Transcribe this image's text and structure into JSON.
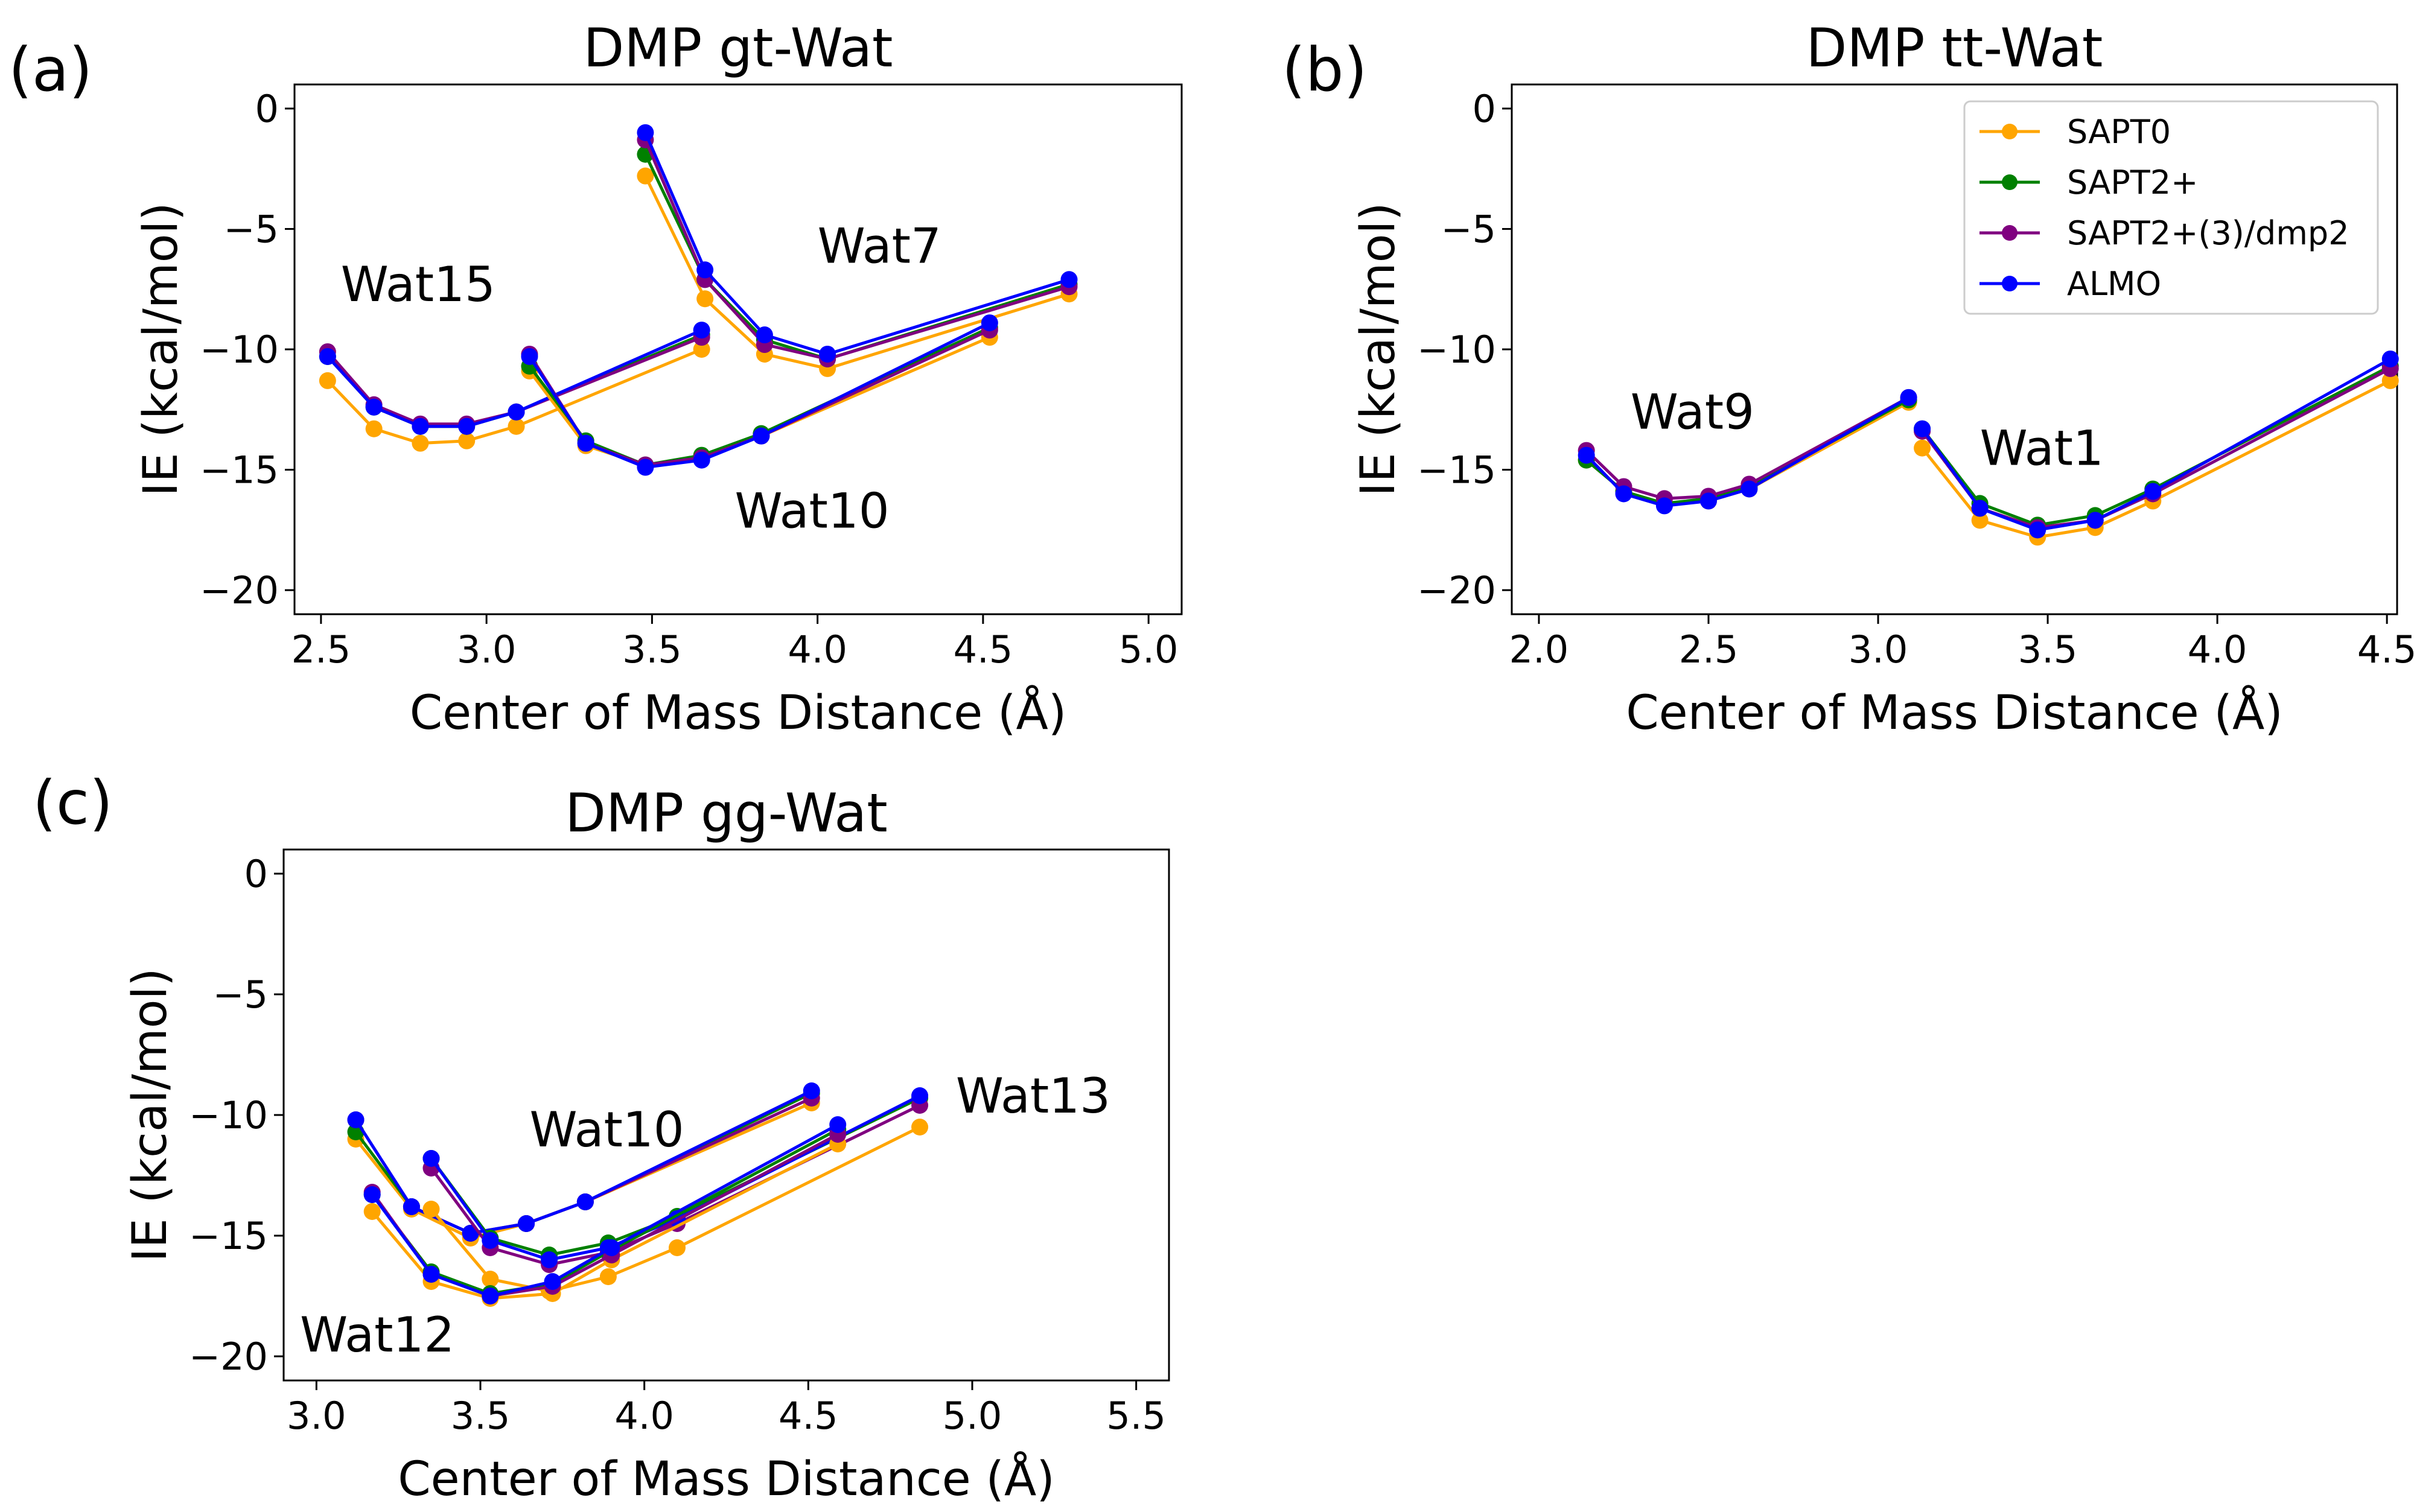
{
  "colors": {
    "SAPT0": "#FFA500",
    "SAPT2+": "#008000",
    "SAPT2+(3)/dmp2": "#800080",
    "ALMO": "#0000FF"
  },
  "legend": {
    "entries": [
      "SAPT0",
      "SAPT2+",
      "SAPT2+(3)/dmp2",
      "ALMO"
    ],
    "placement": "top-right of panel (b)"
  },
  "chart_data": [
    {
      "type": "line",
      "panel": "(a)",
      "title": "DMP gt-Wat",
      "xlabel": "Center of Mass Distance  (Å)",
      "ylabel": "IE (kcal/mol)",
      "xlim": [
        2.42,
        5.1
      ],
      "ylim": [
        -21.0,
        1.0
      ],
      "xticks": [
        "2.5",
        "3.0",
        "3.5",
        "4.0",
        "4.5",
        "5.0"
      ],
      "xtick_values": [
        2.5,
        3.0,
        3.5,
        4.0,
        4.5,
        5.0
      ],
      "yticks": [
        "0",
        "−5",
        "−10",
        "−15",
        "−20"
      ],
      "ytick_values": [
        0,
        -5,
        -10,
        -15,
        -20
      ],
      "annotations": [
        {
          "text": "Wat15",
          "x": 2.56,
          "y": -8.0
        },
        {
          "text": "Wat7",
          "x": 4.0,
          "y": -6.4
        },
        {
          "text": "Wat10",
          "x": 3.75,
          "y": -17.4
        }
      ],
      "groups": [
        {
          "name": "Wat15",
          "x": [
            2.52,
            2.66,
            2.8,
            2.94,
            3.09,
            3.65
          ],
          "series": [
            {
              "name": "SAPT0",
              "values": [
                -11.3,
                -13.3,
                -13.9,
                -13.8,
                -13.2,
                -10.0
              ]
            },
            {
              "name": "SAPT2+",
              "values": [
                -10.3,
                -12.4,
                -13.2,
                -13.2,
                -12.6,
                -9.4
              ]
            },
            {
              "name": "SAPT2+(3)/dmp2",
              "values": [
                -10.1,
                -12.3,
                -13.1,
                -13.1,
                -12.6,
                -9.5
              ]
            },
            {
              "name": "ALMO",
              "values": [
                -10.3,
                -12.4,
                -13.2,
                -13.2,
                -12.6,
                -9.2
              ]
            }
          ]
        },
        {
          "name": "Wat7",
          "x": [
            3.48,
            3.66,
            3.84,
            4.03,
            4.76
          ],
          "series": [
            {
              "name": "SAPT0",
              "values": [
                -2.8,
                -7.9,
                -10.2,
                -10.8,
                -7.7
              ]
            },
            {
              "name": "SAPT2+",
              "values": [
                -1.9,
                -7.1,
                -9.6,
                -10.4,
                -7.3
              ]
            },
            {
              "name": "SAPT2+(3)/dmp2",
              "values": [
                -1.3,
                -7.1,
                -9.8,
                -10.4,
                -7.4
              ]
            },
            {
              "name": "ALMO",
              "values": [
                -1.0,
                -6.7,
                -9.4,
                -10.2,
                -7.1
              ]
            }
          ]
        },
        {
          "name": "Wat10",
          "x": [
            3.13,
            3.3,
            3.48,
            3.65,
            3.83,
            4.52
          ],
          "series": [
            {
              "name": "SAPT0",
              "values": [
                -10.9,
                -14.0,
                -14.8,
                -14.5,
                -13.6,
                -9.5
              ]
            },
            {
              "name": "SAPT2+",
              "values": [
                -10.7,
                -13.8,
                -14.8,
                -14.4,
                -13.5,
                -9.1
              ]
            },
            {
              "name": "SAPT2+(3)/dmp2",
              "values": [
                -10.2,
                -13.9,
                -14.8,
                -14.5,
                -13.6,
                -9.2
              ]
            },
            {
              "name": "ALMO",
              "values": [
                -10.3,
                -13.9,
                -14.9,
                -14.6,
                -13.6,
                -8.9
              ]
            }
          ]
        }
      ]
    },
    {
      "type": "line",
      "panel": "(b)",
      "title": "DMP tt-Wat",
      "xlabel": "Center of Mass Distance  (Å)",
      "ylabel": "IE (kcal/mol)",
      "xlim": [
        1.92,
        4.53
      ],
      "ylim": [
        -21.0,
        1.0
      ],
      "xticks": [
        "2.0",
        "2.5",
        "3.0",
        "3.5",
        "4.0",
        "4.5"
      ],
      "xtick_values": [
        2.0,
        2.5,
        3.0,
        3.5,
        4.0,
        4.5
      ],
      "yticks": [
        "0",
        "−5",
        "−10",
        "−15",
        "−20"
      ],
      "ytick_values": [
        0,
        -5,
        -10,
        -15,
        -20
      ],
      "annotations": [
        {
          "text": "Wat9",
          "x": 2.27,
          "y": -13.3
        },
        {
          "text": "Wat1",
          "x": 3.3,
          "y": -14.8
        }
      ],
      "groups": [
        {
          "name": "Wat9",
          "x": [
            2.14,
            2.25,
            2.37,
            2.5,
            2.62,
            3.09
          ],
          "series": [
            {
              "name": "SAPT0",
              "values": [
                -14.6,
                -15.9,
                -16.4,
                -16.3,
                -15.8,
                -12.2
              ]
            },
            {
              "name": "SAPT2+",
              "values": [
                -14.6,
                -15.9,
                -16.4,
                -16.2,
                -15.7,
                -12.1
              ]
            },
            {
              "name": "SAPT2+(3)/dmp2",
              "values": [
                -14.2,
                -15.7,
                -16.2,
                -16.1,
                -15.6,
                -12.0
              ]
            },
            {
              "name": "ALMO",
              "values": [
                -14.4,
                -16.0,
                -16.5,
                -16.3,
                -15.8,
                -12.0
              ]
            }
          ]
        },
        {
          "name": "Wat1",
          "x": [
            3.13,
            3.3,
            3.47,
            3.64,
            3.81,
            4.51
          ],
          "series": [
            {
              "name": "SAPT0",
              "values": [
                -14.1,
                -17.1,
                -17.8,
                -17.4,
                -16.3,
                -11.3
              ]
            },
            {
              "name": "SAPT2+",
              "values": [
                -13.3,
                -16.4,
                -17.3,
                -16.9,
                -15.8,
                -10.7
              ]
            },
            {
              "name": "SAPT2+(3)/dmp2",
              "values": [
                -13.4,
                -16.6,
                -17.4,
                -17.1,
                -16.0,
                -10.8
              ]
            },
            {
              "name": "ALMO",
              "values": [
                -13.3,
                -16.6,
                -17.5,
                -17.1,
                -15.9,
                -10.4
              ]
            }
          ]
        }
      ]
    },
    {
      "type": "line",
      "panel": "(c)",
      "title": "DMP gg-Wat",
      "xlabel": "Center of Mass Distance  (Å)",
      "ylabel": "IE (kcal/mol)",
      "xlim": [
        2.9,
        5.6
      ],
      "ylim": [
        -21.0,
        1.0
      ],
      "xticks": [
        "3.0",
        "3.5",
        "4.0",
        "4.5",
        "5.0",
        "5.5"
      ],
      "xtick_values": [
        3.0,
        3.5,
        4.0,
        4.5,
        5.0,
        5.5
      ],
      "yticks": [
        "0",
        "−5",
        "−10",
        "−15",
        "−20"
      ],
      "ytick_values": [
        0,
        -5,
        -10,
        -15,
        -20
      ],
      "annotations": [
        {
          "text": "Wat10",
          "x": 3.65,
          "y": -11.3
        },
        {
          "text": "Wat13",
          "x": 4.95,
          "y": -9.9
        },
        {
          "text": "Wat12",
          "x": 2.95,
          "y": -19.8
        }
      ],
      "groups": [
        {
          "name": "Wat10",
          "x": [
            3.12,
            3.29,
            3.47,
            3.64,
            3.82,
            4.51
          ],
          "series": [
            {
              "name": "SAPT0",
              "values": [
                -11.0,
                -13.9,
                -15.1,
                -14.5,
                -13.6,
                -9.5
              ]
            },
            {
              "name": "SAPT2+",
              "values": [
                -10.7,
                -13.8,
                -14.9,
                -14.5,
                -13.6,
                -9.1
              ]
            },
            {
              "name": "SAPT2+(3)/dmp2",
              "values": [
                -10.2,
                -13.8,
                -14.9,
                -14.5,
                -13.6,
                -9.3
              ]
            },
            {
              "name": "ALMO",
              "values": [
                -10.2,
                -13.8,
                -14.9,
                -14.5,
                -13.6,
                -9.0
              ]
            }
          ]
        },
        {
          "name": "Wat13",
          "x": [
            3.35,
            3.53,
            3.71,
            3.89,
            4.1,
            4.84
          ],
          "series": [
            {
              "name": "SAPT0",
              "values": [
                -13.9,
                -16.8,
                -17.3,
                -16.7,
                -15.5,
                -10.5
              ]
            },
            {
              "name": "SAPT2+",
              "values": [
                -11.8,
                -15.1,
                -15.8,
                -15.3,
                -14.2,
                -9.3
              ]
            },
            {
              "name": "SAPT2+(3)/dmp2",
              "values": [
                -12.2,
                -15.5,
                -16.2,
                -15.7,
                -14.5,
                -9.6
              ]
            },
            {
              "name": "ALMO",
              "values": [
                -11.8,
                -15.2,
                -16.0,
                -15.5,
                -14.3,
                -9.2
              ]
            }
          ]
        },
        {
          "name": "Wat12",
          "x": [
            3.17,
            3.35,
            3.53,
            3.72,
            3.9,
            4.59
          ],
          "series": [
            {
              "name": "SAPT0",
              "values": [
                -14.0,
                -16.9,
                -17.6,
                -17.4,
                -16.0,
                -11.2
              ]
            },
            {
              "name": "SAPT2+",
              "values": [
                -13.3,
                -16.5,
                -17.4,
                -17.0,
                -15.6,
                -10.6
              ]
            },
            {
              "name": "SAPT2+(3)/dmp2",
              "values": [
                -13.2,
                -16.6,
                -17.5,
                -17.1,
                -15.8,
                -10.8
              ]
            },
            {
              "name": "ALMO",
              "values": [
                -13.3,
                -16.6,
                -17.5,
                -16.9,
                -15.5,
                -10.4
              ]
            }
          ]
        }
      ]
    }
  ]
}
